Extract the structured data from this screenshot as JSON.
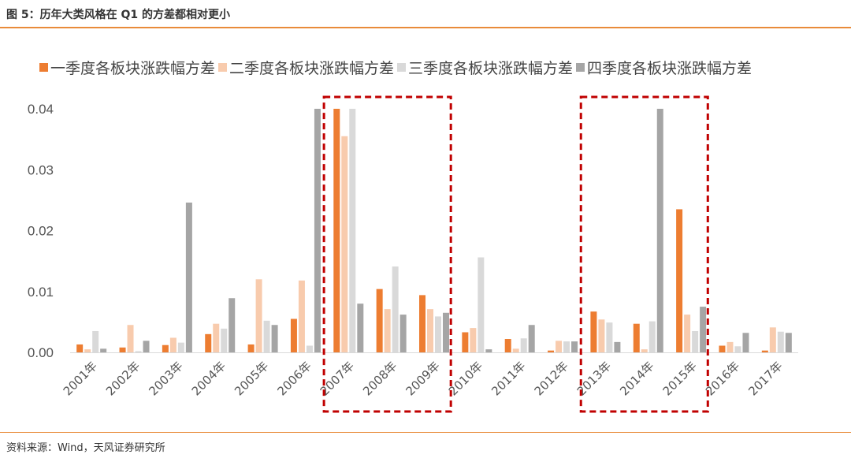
{
  "title": "图 5：历年大类风格在 Q1 的方差都相对更小",
  "source": "资料来源：Wind，天风证券研究所",
  "chart_data": {
    "type": "bar",
    "title": "",
    "xlabel": "",
    "ylabel": "",
    "ylim": [
      0,
      0.04
    ],
    "yticks": [
      "0.00",
      "0.01",
      "0.02",
      "0.03",
      "0.04"
    ],
    "grid": false,
    "legend_position": "top",
    "categories": [
      "2001年",
      "2002年",
      "2003年",
      "2004年",
      "2005年",
      "2006年",
      "2007年",
      "2008年",
      "2009年",
      "2010年",
      "2011年",
      "2012年",
      "2013年",
      "2014年",
      "2015年",
      "2016年",
      "2017年"
    ],
    "series": [
      {
        "name": "一季度各板块涨跌幅方差",
        "color": "#ed7d31",
        "values": [
          0.0013,
          0.0008,
          0.0012,
          0.003,
          0.0013,
          0.0055,
          0.04,
          0.0104,
          0.0094,
          0.0033,
          0.0022,
          0.0003,
          0.0067,
          0.0047,
          0.0235,
          0.0011,
          0.0003
        ]
      },
      {
        "name": "二季度各板块涨跌幅方差",
        "color": "#f8cbad",
        "values": [
          0.0005,
          0.0045,
          0.0024,
          0.0047,
          0.012,
          0.0118,
          0.0355,
          0.0071,
          0.0071,
          0.004,
          0.0006,
          0.0019,
          0.0054,
          0.0005,
          0.0062,
          0.0017,
          0.0041
        ]
      },
      {
        "name": "三季度各板块涨跌幅方差",
        "color": "#d9d9d9",
        "values": [
          0.0035,
          0.0002,
          0.0016,
          0.0039,
          0.0052,
          0.0011,
          0.04,
          0.0141,
          0.0059,
          0.0156,
          0.0023,
          0.0018,
          0.0049,
          0.0051,
          0.0035,
          0.001,
          0.0034
        ]
      },
      {
        "name": "四季度各板块涨跌幅方差",
        "color": "#a5a5a5",
        "values": [
          0.0006,
          0.0019,
          0.0246,
          0.0089,
          0.0045,
          0.04,
          0.008,
          0.0062,
          0.0065,
          0.0005,
          0.0045,
          0.0018,
          0.0017,
          0.04,
          0.0075,
          0.0032,
          0.0032
        ]
      }
    ],
    "annotations": [
      {
        "type": "dashed-box",
        "from": "2007年",
        "to": "2009年",
        "color": "#c00000"
      },
      {
        "type": "dashed-box",
        "from": "2013年",
        "to": "2015年",
        "color": "#c00000"
      }
    ]
  }
}
